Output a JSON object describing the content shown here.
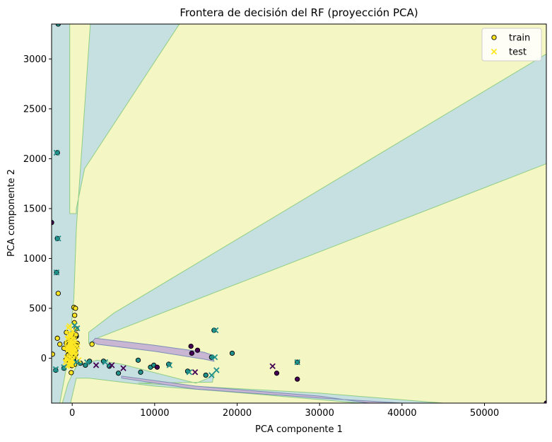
{
  "chart_data": {
    "type": "scatter",
    "title": "Frontera de decisión del RF (proyección PCA)",
    "xlabel": "PCA componente 1",
    "ylabel": "PCA componente 2",
    "xlim": [
      -2500,
      57500
    ],
    "ylim": [
      -450,
      3350
    ],
    "xticks": [
      0,
      10000,
      20000,
      30000,
      40000,
      50000
    ],
    "xtick_labels": [
      "0",
      "10000",
      "20000",
      "30000",
      "40000",
      "50000"
    ],
    "yticks": [
      0,
      500,
      1000,
      1500,
      2000,
      2500,
      3000
    ],
    "ytick_labels": [
      "0",
      "500",
      "1000",
      "1500",
      "2000",
      "2500",
      "3000"
    ],
    "grid": false,
    "legend": {
      "placement": "top-right",
      "entries": [
        "train",
        "test"
      ]
    },
    "colors": {
      "class_0": "#440154",
      "class_1": "#21918c",
      "class_2": "#fde725",
      "region_0": "#c9b6d3",
      "region_1": "#c6dfe0",
      "region_2": "#f4f6c3",
      "boundary_1_2": "#8fce84",
      "boundary_0_1": "#7b8fb5"
    },
    "regions": [
      {
        "class": 2,
        "polygon": [
          [
            -2500,
            -450
          ],
          [
            -2500,
            3350
          ],
          [
            57500,
            3350
          ],
          [
            57500,
            -450
          ]
        ]
      },
      {
        "class": 1,
        "polygon": [
          [
            -2500,
            3350
          ],
          [
            -300,
            3350
          ],
          [
            -300,
            1450
          ],
          [
            500,
            1450
          ],
          [
            500,
            1500
          ],
          [
            1500,
            1900
          ],
          [
            13000,
            3350
          ],
          [
            2200,
            3350
          ],
          [
            500,
            1300
          ],
          [
            200,
            600
          ],
          [
            -500,
            0
          ],
          [
            -1500,
            -450
          ],
          [
            -2500,
            -450
          ]
        ]
      },
      {
        "class": 1,
        "polygon": [
          [
            2000,
            260
          ],
          [
            5000,
            450
          ],
          [
            57500,
            3050
          ],
          [
            57500,
            1950
          ],
          [
            3000,
            200
          ],
          [
            2000,
            150
          ]
        ]
      },
      {
        "class": 1,
        "polygon": [
          [
            -1200,
            -450
          ],
          [
            -500,
            -250
          ],
          [
            500,
            -80
          ],
          [
            3000,
            -20
          ],
          [
            6000,
            -60
          ],
          [
            15000,
            -250
          ],
          [
            16500,
            -200
          ],
          [
            17200,
            -160
          ],
          [
            17000,
            -240
          ],
          [
            8000,
            -250
          ],
          [
            30000,
            -350
          ],
          [
            45000,
            -450
          ],
          [
            35000,
            -450
          ],
          [
            18000,
            -330
          ],
          [
            10000,
            -280
          ],
          [
            2000,
            -200
          ],
          [
            500,
            -200
          ],
          [
            -200,
            -450
          ]
        ]
      },
      {
        "class": 0,
        "polygon": [
          [
            2800,
            200
          ],
          [
            10000,
            130
          ],
          [
            16000,
            60
          ],
          [
            17000,
            30
          ],
          [
            17200,
            -30
          ],
          [
            16000,
            -10
          ],
          [
            10000,
            70
          ],
          [
            3000,
            140
          ],
          [
            2500,
            170
          ]
        ]
      },
      {
        "class": 0,
        "polygon": [
          [
            6000,
            -180
          ],
          [
            15000,
            -280
          ],
          [
            30000,
            -380
          ],
          [
            36000,
            -450
          ],
          [
            40000,
            -450
          ],
          [
            30000,
            -400
          ],
          [
            15000,
            -310
          ],
          [
            6000,
            -200
          ]
        ]
      }
    ],
    "series": [
      {
        "name": "train",
        "marker": "circle",
        "points": [
          {
            "x": -1700,
            "y": 3350,
            "c": 1
          },
          {
            "x": -1800,
            "y": 2060,
            "c": 1
          },
          {
            "x": -2500,
            "y": 1360,
            "c": 0
          },
          {
            "x": -1800,
            "y": 1200,
            "c": 1
          },
          {
            "x": -1900,
            "y": 860,
            "c": 1
          },
          {
            "x": -1700,
            "y": 650,
            "c": 2
          },
          {
            "x": 200,
            "y": 510,
            "c": 2
          },
          {
            "x": 400,
            "y": 500,
            "c": 2
          },
          {
            "x": 300,
            "y": 430,
            "c": 2
          },
          {
            "x": -1800,
            "y": 200,
            "c": 2
          },
          {
            "x": -1500,
            "y": 140,
            "c": 2
          },
          {
            "x": -2400,
            "y": 40,
            "c": 2
          },
          {
            "x": -1000,
            "y": 100,
            "c": 2
          },
          {
            "x": -600,
            "y": 80,
            "c": 2
          },
          {
            "x": 100,
            "y": 250,
            "c": 2
          },
          {
            "x": 500,
            "y": 220,
            "c": 1
          },
          {
            "x": 600,
            "y": 150,
            "c": 2
          },
          {
            "x": 2400,
            "y": 140,
            "c": 2
          },
          {
            "x": -500,
            "y": 0,
            "c": 2
          },
          {
            "x": 200,
            "y": -30,
            "c": 1
          },
          {
            "x": 1000,
            "y": -50,
            "c": 1
          },
          {
            "x": 1600,
            "y": -70,
            "c": 1
          },
          {
            "x": 2100,
            "y": -30,
            "c": 1
          },
          {
            "x": 3800,
            "y": -30,
            "c": 1
          },
          {
            "x": 4500,
            "y": -80,
            "c": 1
          },
          {
            "x": 5600,
            "y": -150,
            "c": 1
          },
          {
            "x": 8000,
            "y": -20,
            "c": 1
          },
          {
            "x": 8300,
            "y": -140,
            "c": 1
          },
          {
            "x": 9500,
            "y": -90,
            "c": 1
          },
          {
            "x": 9900,
            "y": -70,
            "c": 1
          },
          {
            "x": 10300,
            "y": -90,
            "c": 0
          },
          {
            "x": 11700,
            "y": -60,
            "c": 1
          },
          {
            "x": 14400,
            "y": 120,
            "c": 0
          },
          {
            "x": 14500,
            "y": 50,
            "c": 0
          },
          {
            "x": 15200,
            "y": 80,
            "c": 0
          },
          {
            "x": 16900,
            "y": 10,
            "c": 1
          },
          {
            "x": 17200,
            "y": 280,
            "c": 1
          },
          {
            "x": 19400,
            "y": 50,
            "c": 1
          },
          {
            "x": 24800,
            "y": -150,
            "c": 0
          },
          {
            "x": 27300,
            "y": -40,
            "c": 1
          },
          {
            "x": 27300,
            "y": -210,
            "c": 0
          },
          {
            "x": 57500,
            "y": -450,
            "c": 0
          },
          {
            "x": -1000,
            "y": -100,
            "c": 1
          },
          {
            "x": -2000,
            "y": -120,
            "c": 1
          },
          {
            "x": 14000,
            "y": -130,
            "c": 1
          },
          {
            "x": 16200,
            "y": -170,
            "c": 1
          }
        ]
      },
      {
        "name": "test",
        "marker": "x",
        "points": [
          {
            "x": -1900,
            "y": 2060,
            "c": 1
          },
          {
            "x": -1700,
            "y": 1200,
            "c": 1
          },
          {
            "x": -1900,
            "y": 860,
            "c": 1
          },
          {
            "x": 300,
            "y": 330,
            "c": 1
          },
          {
            "x": 600,
            "y": 300,
            "c": 1
          },
          {
            "x": -200,
            "y": 250,
            "c": 2
          },
          {
            "x": 0,
            "y": 200,
            "c": 2
          },
          {
            "x": 200,
            "y": 180,
            "c": 2
          },
          {
            "x": -300,
            "y": 150,
            "c": 2
          },
          {
            "x": 100,
            "y": 120,
            "c": 2
          },
          {
            "x": -500,
            "y": 80,
            "c": 2
          },
          {
            "x": 300,
            "y": 60,
            "c": 2
          },
          {
            "x": -200,
            "y": 40,
            "c": 2
          },
          {
            "x": 0,
            "y": -10,
            "c": 2
          },
          {
            "x": -800,
            "y": -40,
            "c": 2
          },
          {
            "x": 500,
            "y": -40,
            "c": 1
          },
          {
            "x": 1800,
            "y": -40,
            "c": 1
          },
          {
            "x": 2900,
            "y": -70,
            "c": 0
          },
          {
            "x": 4000,
            "y": -40,
            "c": 1
          },
          {
            "x": 4800,
            "y": -70,
            "c": 0
          },
          {
            "x": 6200,
            "y": -100,
            "c": 0
          },
          {
            "x": 11800,
            "y": -70,
            "c": 1
          },
          {
            "x": 14200,
            "y": -140,
            "c": 1
          },
          {
            "x": 14900,
            "y": -140,
            "c": 0
          },
          {
            "x": 16900,
            "y": -170,
            "c": 1
          },
          {
            "x": 17300,
            "y": 10,
            "c": 1
          },
          {
            "x": 17400,
            "y": 280,
            "c": 1
          },
          {
            "x": 17500,
            "y": -120,
            "c": 1
          },
          {
            "x": 24300,
            "y": -80,
            "c": 0
          },
          {
            "x": 27300,
            "y": -40,
            "c": 1
          },
          {
            "x": -1000,
            "y": -90,
            "c": 1
          },
          {
            "x": -2000,
            "y": -110,
            "c": 1
          }
        ]
      }
    ],
    "cluster": {
      "note": "",
      "train_count": 55,
      "test_count": 35,
      "center": [
        0,
        100
      ],
      "spread": [
        550,
        170
      ]
    }
  }
}
